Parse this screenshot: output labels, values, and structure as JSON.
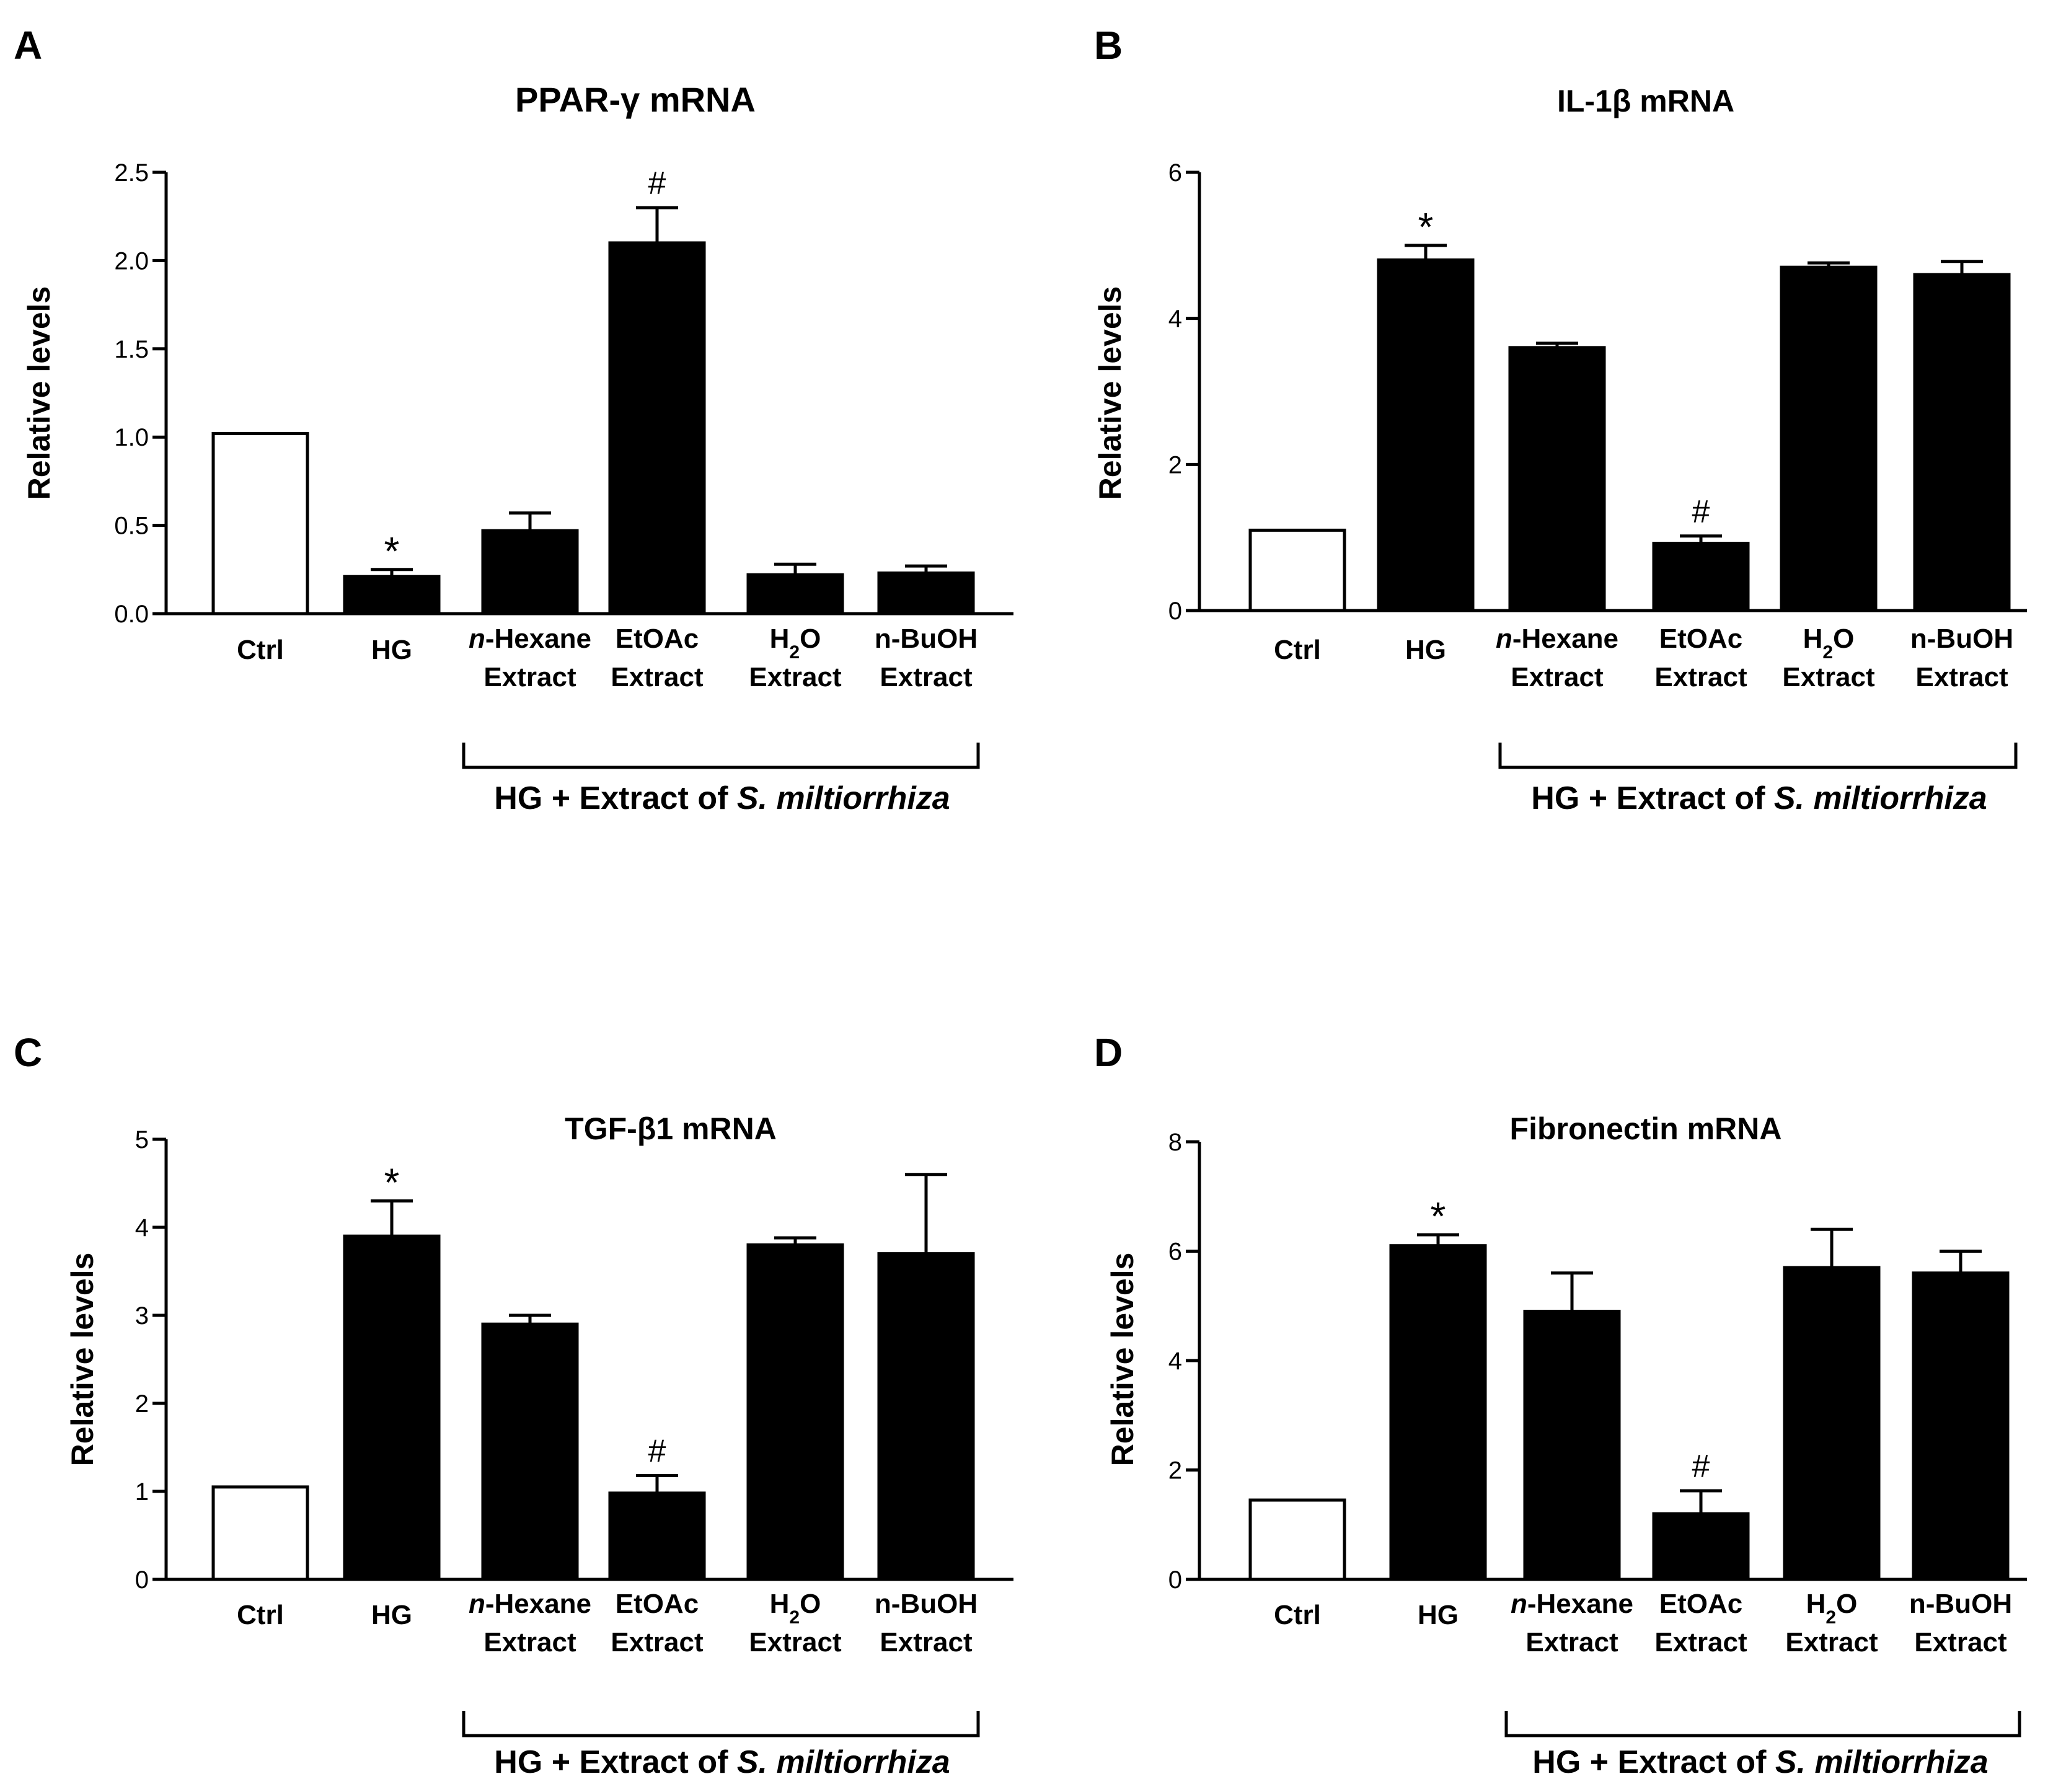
{
  "figure": {
    "colors": {
      "ink": "#000000",
      "control_fill": "#ffffff",
      "treated_fill": "#000000"
    }
  },
  "chart_data": [
    {
      "panel": "A",
      "type": "bar",
      "title_prefix": "PPAR-",
      "title_symbol": "γ",
      "title_suffix": " mRNA",
      "ylabel": "Relative levels",
      "ylim": [
        0,
        2.5
      ],
      "yticks": [
        "0.0",
        "0.5",
        "1.0",
        "1.5",
        "2.0",
        "2.5"
      ],
      "tick_values": [
        0,
        0.5,
        1.0,
        1.5,
        2.0,
        2.5
      ],
      "categories": [
        {
          "line1": "Ctrl",
          "line2": ""
        },
        {
          "line1": "HG",
          "line2": ""
        },
        {
          "line1_italic": "n",
          "line1": "-Hexane",
          "line2": "Extract"
        },
        {
          "line1": "EtOAc",
          "line2": "Extract"
        },
        {
          "line1": "H",
          "line1_sub": "2",
          "line1_after": "O",
          "line2": "Extract"
        },
        {
          "line1": "n-BuOH",
          "line2": "Extract"
        }
      ],
      "values": [
        1.02,
        0.21,
        0.47,
        2.1,
        0.22,
        0.23
      ],
      "errors": [
        0,
        0.04,
        0.1,
        0.2,
        0.06,
        0.04
      ],
      "significance": [
        "",
        "*",
        "",
        "#",
        "",
        ""
      ],
      "group_label": {
        "text": "HG + Extract of ",
        "italic": "S. miltiorrhiza"
      }
    },
    {
      "panel": "B",
      "type": "bar",
      "title_prefix": "IL-1",
      "title_symbol": "β",
      "title_suffix": " mRNA",
      "ylabel": "Relative levels",
      "ylim": [
        0,
        6
      ],
      "yticks": [
        "0",
        "2",
        "4",
        "6"
      ],
      "tick_values": [
        0,
        2,
        4,
        6
      ],
      "categories": [
        {
          "line1": "Ctrl",
          "line2": ""
        },
        {
          "line1": "HG",
          "line2": ""
        },
        {
          "line1_italic": "n",
          "line1": "-Hexane",
          "line2": "Extract"
        },
        {
          "line1": "EtOAc",
          "line2": "Extract"
        },
        {
          "line1": "H",
          "line1_sub": "2",
          "line1_after": "O",
          "line2": "Extract"
        },
        {
          "line1": "n-BuOH",
          "line2": "Extract"
        }
      ],
      "values": [
        1.1,
        4.8,
        3.6,
        0.92,
        4.7,
        4.6
      ],
      "errors": [
        0,
        0.2,
        0.06,
        0.1,
        0.06,
        0.18
      ],
      "significance": [
        "",
        "*",
        "",
        "#",
        "",
        ""
      ],
      "group_label": {
        "text": "HG + Extract of ",
        "italic": "S. miltiorrhiza"
      }
    },
    {
      "panel": "C",
      "type": "bar",
      "title_prefix": "TGF-",
      "title_symbol": "β",
      "title_suffix": "1 mRNA",
      "ylabel": "Relative levels",
      "ylim": [
        0,
        5
      ],
      "yticks": [
        "0",
        "1",
        "2",
        "3",
        "4",
        "5"
      ],
      "tick_values": [
        0,
        1,
        2,
        3,
        4,
        5
      ],
      "categories": [
        {
          "line1": "Ctrl",
          "line2": ""
        },
        {
          "line1": "HG",
          "line2": ""
        },
        {
          "line1_italic": "n",
          "line1": "-Hexane",
          "line2": "Extract"
        },
        {
          "line1": "EtOAc",
          "line2": "Extract"
        },
        {
          "line1": "H",
          "line1_sub": "2",
          "line1_after": "O",
          "line2": "Extract"
        },
        {
          "line1": "n-BuOH",
          "line2": "Extract"
        }
      ],
      "values": [
        1.05,
        3.9,
        2.9,
        0.98,
        3.8,
        3.7
      ],
      "errors": [
        0,
        0.4,
        0.1,
        0.2,
        0.08,
        0.9
      ],
      "significance": [
        "",
        "*",
        "",
        "#",
        "",
        ""
      ],
      "group_label": {
        "text": "HG + Extract of ",
        "italic": "S. miltiorrhiza"
      }
    },
    {
      "panel": "D",
      "type": "bar",
      "title_prefix": "Fibronectin",
      "title_symbol": "",
      "title_suffix": " mRNA",
      "ylabel": "Relative levels",
      "ylim": [
        0,
        8
      ],
      "yticks": [
        "0",
        "2",
        "4",
        "6",
        "8"
      ],
      "tick_values": [
        0,
        2,
        4,
        6,
        8
      ],
      "categories": [
        {
          "line1": "Ctrl",
          "line2": ""
        },
        {
          "line1": "HG",
          "line2": ""
        },
        {
          "line1_italic": "n",
          "line1": "-Hexane",
          "line2": "Extract"
        },
        {
          "line1": "EtOAc",
          "line2": "Extract"
        },
        {
          "line1": "H",
          "line1_sub": "2",
          "line1_after": "O",
          "line2": "Extract"
        },
        {
          "line1": "n-BuOH",
          "line2": "Extract"
        }
      ],
      "values": [
        1.45,
        6.1,
        4.9,
        1.2,
        5.7,
        5.6
      ],
      "errors": [
        0,
        0.2,
        0.7,
        0.42,
        0.7,
        0.4
      ],
      "significance": [
        "",
        "*",
        "",
        "#",
        "",
        ""
      ],
      "group_label": {
        "text": "HG + Extract of ",
        "italic": "S. miltiorrhiza"
      }
    }
  ]
}
